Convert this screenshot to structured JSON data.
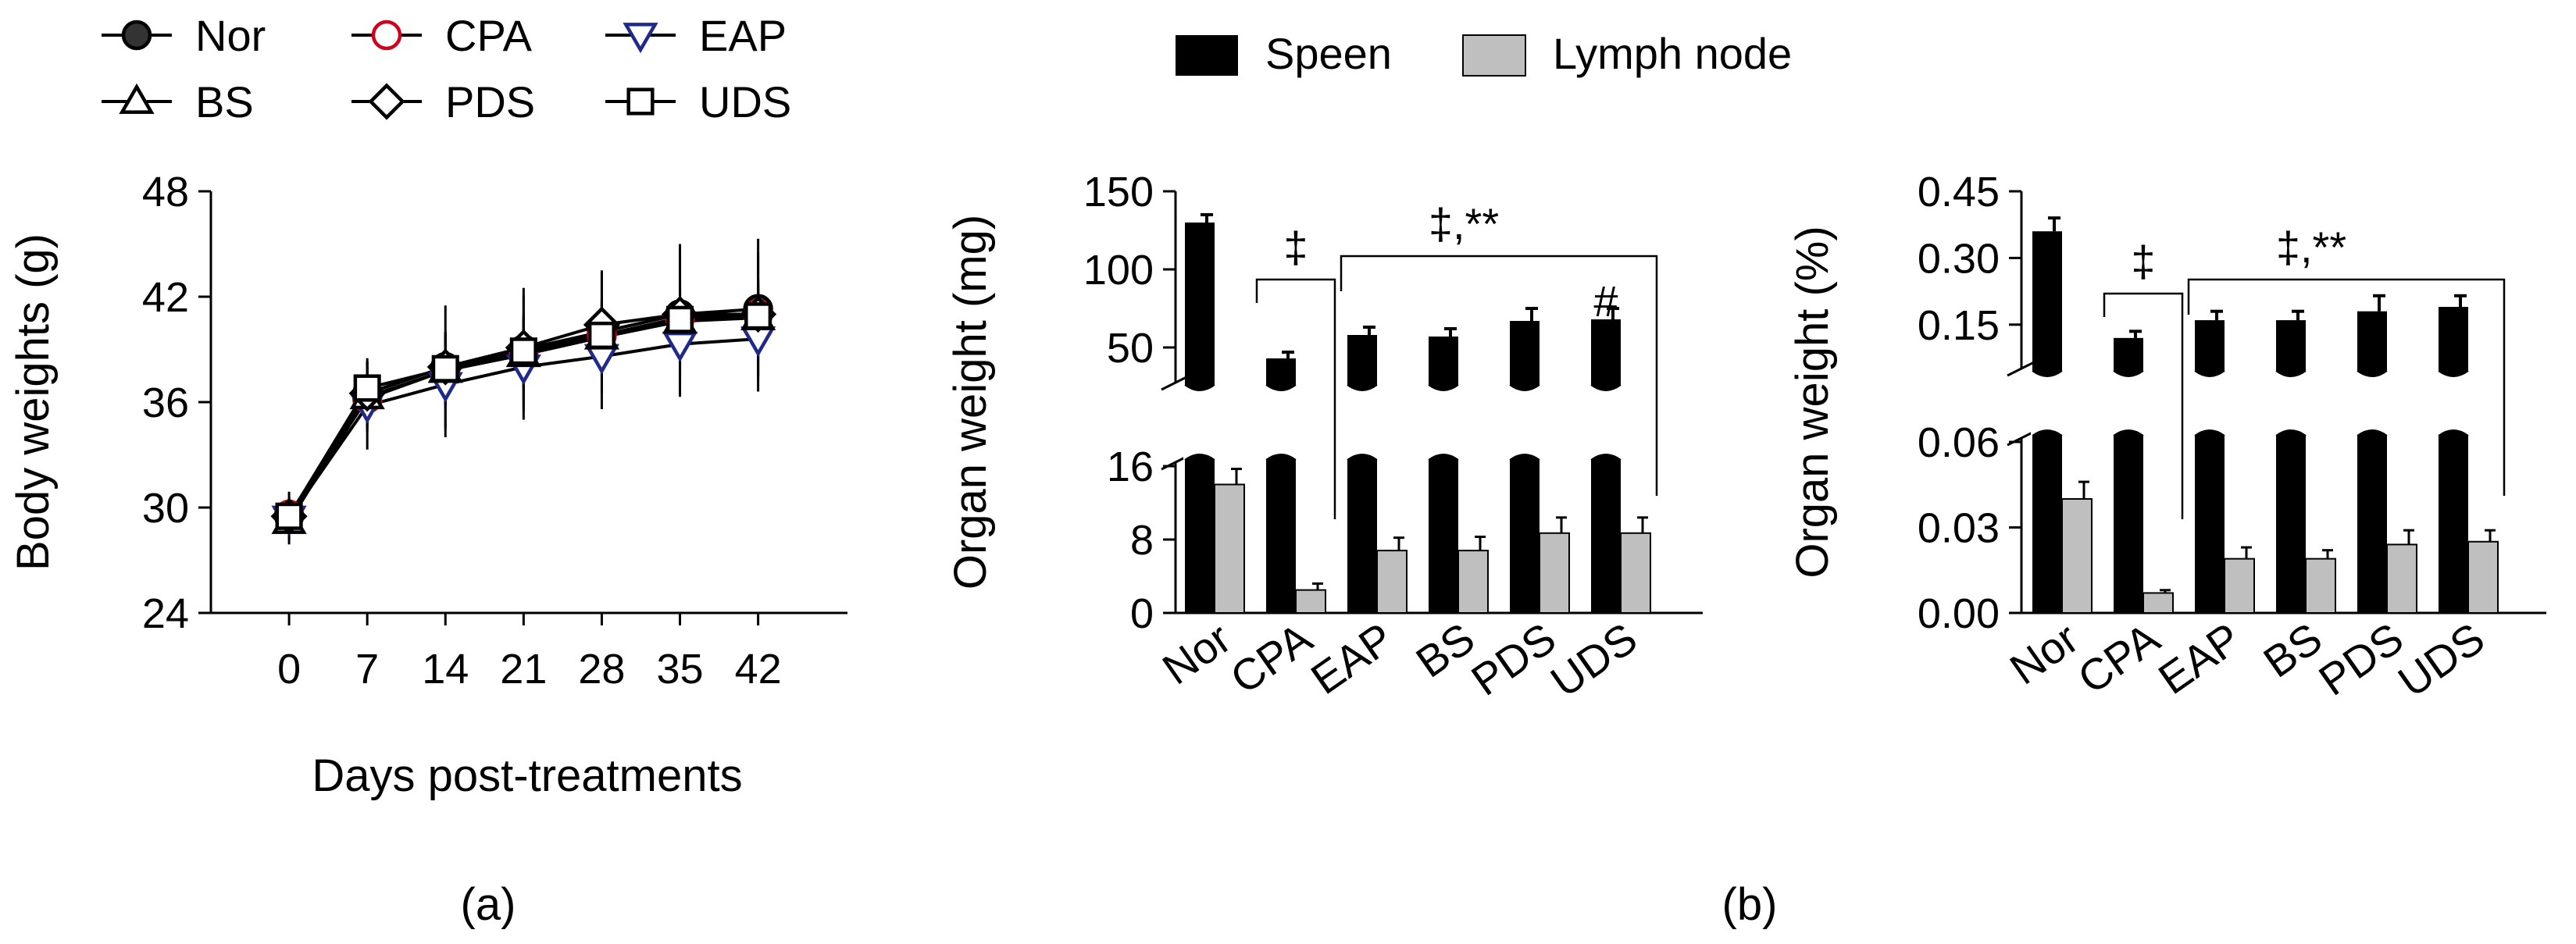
{
  "chart_data": [
    {
      "panel": "(a)",
      "type": "line",
      "xlabel": "Days post-treatments",
      "ylabel": "Body weights (g)",
      "x": [
        0,
        7,
        14,
        21,
        28,
        35,
        42
      ],
      "xticks": [
        "0",
        "7",
        "14",
        "21",
        "28",
        "35",
        "42"
      ],
      "ylim": [
        24,
        48
      ],
      "yticks": [
        "24",
        "30",
        "36",
        "42",
        "48"
      ],
      "series": [
        {
          "name": "Nor",
          "marker": "filled-circle",
          "color": "#000000",
          "values": [
            29.5,
            36.5,
            38.0,
            39.0,
            40.0,
            41.0,
            41.3
          ],
          "err": [
            1.0,
            2.0,
            3.5,
            3.5,
            3.5,
            4.0,
            4.0
          ]
        },
        {
          "name": "CPA",
          "marker": "open-circle",
          "color": "#d0021b",
          "values": [
            29.6,
            36.2,
            37.8,
            38.8,
            39.8,
            40.8,
            41.0
          ],
          "err": [
            1.0,
            1.5,
            2.0,
            2.0,
            2.0,
            2.0,
            2.0
          ]
        },
        {
          "name": "EAP",
          "marker": "open-triangle-down",
          "color": "#1f2a8a",
          "values": [
            29.4,
            35.8,
            37.0,
            38.0,
            38.6,
            39.3,
            39.6
          ],
          "err": [
            1.5,
            2.5,
            3.0,
            3.0,
            3.0,
            3.0,
            3.0
          ]
        },
        {
          "name": "BS",
          "marker": "open-triangle-up",
          "color": "#000000",
          "values": [
            29.2,
            36.3,
            37.8,
            38.7,
            39.7,
            40.6,
            40.8
          ],
          "err": [
            1.0,
            2.0,
            2.0,
            2.0,
            2.0,
            2.0,
            2.0
          ]
        },
        {
          "name": "PDS",
          "marker": "open-diamond",
          "color": "#000000",
          "values": [
            29.5,
            36.5,
            38.0,
            39.1,
            40.4,
            41.0,
            41.0
          ],
          "err": [
            1.0,
            1.5,
            2.0,
            3.0,
            3.0,
            3.5,
            3.5
          ]
        },
        {
          "name": "UDS",
          "marker": "open-square",
          "color": "#000000",
          "values": [
            29.5,
            36.8,
            37.9,
            38.9,
            39.8,
            40.7,
            40.9
          ],
          "err": [
            1.0,
            1.5,
            2.0,
            2.0,
            2.0,
            2.0,
            2.0
          ]
        }
      ],
      "legend": [
        "Nor",
        "CPA",
        "EAP",
        "BS",
        "PDS",
        "UDS"
      ],
      "caption": "(a)"
    },
    {
      "panel": "(b) left",
      "type": "bar",
      "ylabel": "Organ weight (mg)",
      "categories": [
        "Nor",
        "CPA",
        "EAP",
        "BS",
        "PDS",
        "UDS"
      ],
      "broken_axis": {
        "lower": [
          0,
          16
        ],
        "upper": [
          30,
          150
        ]
      },
      "yticks_lower": [
        "0",
        "8",
        "16"
      ],
      "yticks_upper": [
        "50",
        "100",
        "150"
      ],
      "series": [
        {
          "name": "Speen",
          "color": "#000000",
          "values": [
            130,
            43,
            58,
            57,
            67,
            68
          ],
          "err": [
            5,
            4,
            5,
            5,
            8,
            7
          ]
        },
        {
          "name": "Lymph node",
          "color": "#bfbfbf",
          "values": [
            14.0,
            2.5,
            6.8,
            6.8,
            8.7,
            8.7
          ],
          "err": [
            1.7,
            0.7,
            1.4,
            1.5,
            1.7,
            1.7
          ]
        }
      ],
      "annotations": [
        {
          "text": "‡",
          "span": [
            "CPA",
            "CPA"
          ]
        },
        {
          "text": "‡,**",
          "span": [
            "EAP",
            "UDS"
          ]
        },
        {
          "text": "#",
          "on": "UDS"
        }
      ]
    },
    {
      "panel": "(b) right",
      "type": "bar",
      "ylabel": "Organ weight (%)",
      "categories": [
        "Nor",
        "CPA",
        "EAP",
        "BS",
        "PDS",
        "UDS"
      ],
      "broken_axis": {
        "lower": [
          0,
          0.06
        ],
        "upper": [
          0.06,
          0.45
        ]
      },
      "yticks_lower": [
        "0.00",
        "0.03",
        "0.06"
      ],
      "yticks_upper": [
        "0.15",
        "0.30",
        "0.45"
      ],
      "series": [
        {
          "name": "Speen",
          "color": "#000000",
          "values": [
            0.36,
            0.12,
            0.16,
            0.16,
            0.18,
            0.19
          ],
          "err": [
            0.03,
            0.015,
            0.02,
            0.02,
            0.035,
            0.025
          ]
        },
        {
          "name": "Lymph node",
          "color": "#bfbfbf",
          "values": [
            0.04,
            0.007,
            0.019,
            0.019,
            0.024,
            0.025
          ],
          "err": [
            0.006,
            0.001,
            0.004,
            0.003,
            0.005,
            0.004
          ]
        }
      ],
      "annotations": [
        {
          "text": "‡",
          "span": [
            "CPA",
            "CPA"
          ]
        },
        {
          "text": "‡,**",
          "span": [
            "EAP",
            "UDS"
          ]
        }
      ]
    }
  ],
  "bar_legend": [
    "Speen",
    "Lymph node"
  ],
  "caption_b": "(b)"
}
